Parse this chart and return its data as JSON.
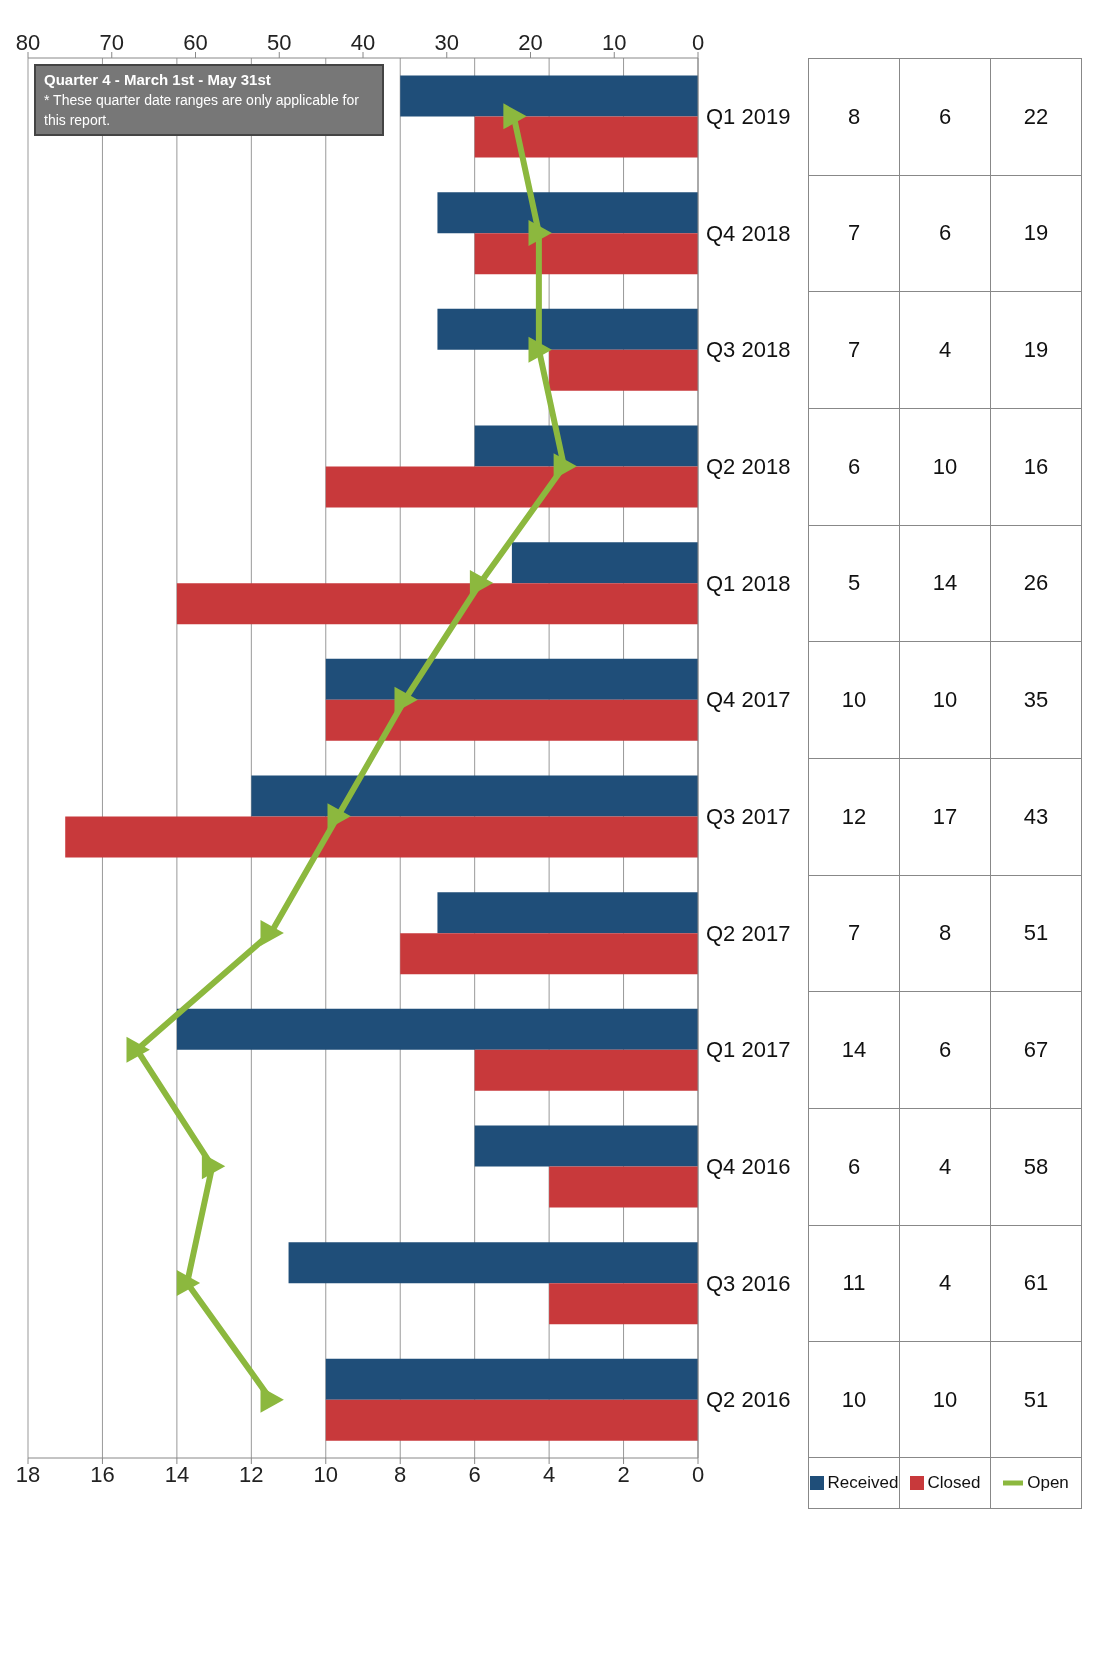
{
  "chart_data": {
    "type": "bar",
    "orientation": "horizontal",
    "categories": [
      "Q1 2019",
      "Q4 2018",
      "Q3 2018",
      "Q2 2018",
      "Q1 2018",
      "Q4 2017",
      "Q3 2017",
      "Q2 2017",
      "Q1 2017",
      "Q4 2016",
      "Q3 2016",
      "Q2 2016"
    ],
    "series": [
      {
        "name": "Received",
        "color": "#1f4e79",
        "values": [
          8,
          7,
          7,
          6,
          5,
          10,
          12,
          7,
          14,
          6,
          11,
          10
        ]
      },
      {
        "name": "Closed",
        "color": "#c8393b",
        "values": [
          6,
          6,
          4,
          10,
          14,
          10,
          17,
          8,
          6,
          4,
          4,
          10
        ]
      },
      {
        "name": "Open",
        "type": "line",
        "axis": "x2",
        "color": "#8cb83e",
        "marker": "triangle",
        "values": [
          22,
          19,
          19,
          16,
          26,
          35,
          43,
          51,
          67,
          58,
          61,
          51
        ]
      }
    ],
    "xlim": [
      18,
      0
    ],
    "xticks": [
      18,
      16,
      14,
      12,
      10,
      8,
      6,
      4,
      2,
      0
    ],
    "x2lim": [
      80,
      0
    ],
    "x2ticks": [
      80,
      70,
      60,
      50,
      40,
      30,
      20,
      10,
      0
    ],
    "grid": "x",
    "legend": "bottom right",
    "data_labels": true,
    "annotations": [
      "Quarter 4 - March 1st - May 31st",
      "* These quarter date ranges are only applicable for this report."
    ]
  }
}
